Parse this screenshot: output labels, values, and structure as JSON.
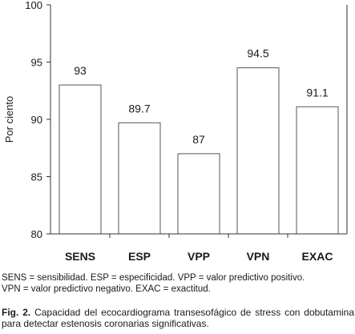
{
  "chart_data": {
    "type": "bar",
    "categories": [
      "SENS",
      "ESP",
      "VPP",
      "VPN",
      "EXAC"
    ],
    "values": [
      93,
      89.7,
      87,
      94.5,
      91.1
    ],
    "value_labels": [
      "93",
      "89.7",
      "87",
      "94.5",
      "91.1"
    ],
    "ylabel": "Por ciento",
    "ylim": [
      80,
      100
    ],
    "yticks": [
      "80",
      "85",
      "90",
      "95",
      "100"
    ],
    "grid": false
  },
  "abbreviations": {
    "line1": "SENS = sensibilidad. ESP = especificidad. VPP = valor predictivo positivo.",
    "line2": "VPN = valor predictivo negativo. EXAC = exactitud."
  },
  "caption": {
    "fig_label": "Fig. 2.",
    "text": " Capacidad del ecocardiograma transesofágico de stress con dobutamina para detectar estenosis coronarias significativas."
  }
}
